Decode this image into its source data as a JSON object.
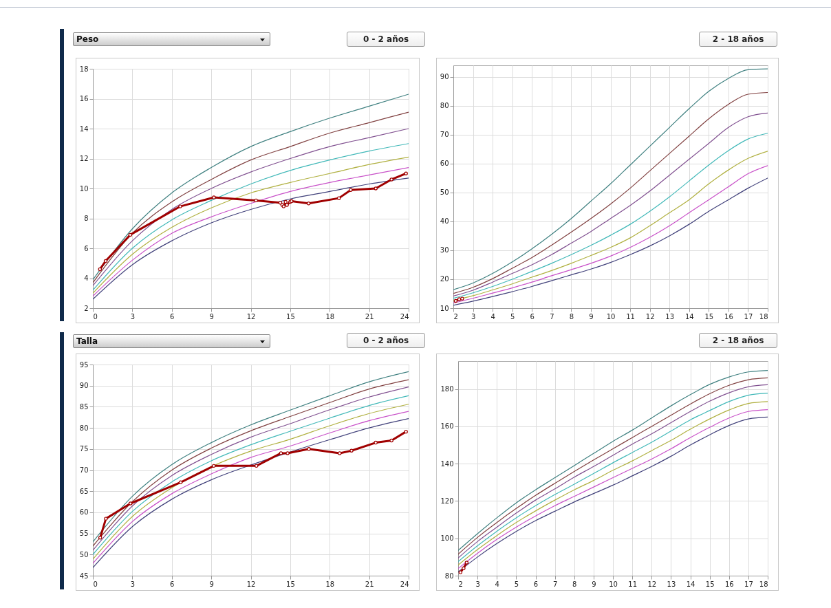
{
  "chart_data": [
    {
      "type": "line",
      "title": "0 - 2 años",
      "annotations": [
        "Peso"
      ],
      "x": [
        0,
        3,
        6,
        9,
        12,
        15,
        18,
        21,
        24
      ],
      "xlim": [
        0,
        24
      ],
      "xticks": [
        0,
        3,
        6,
        9,
        12,
        15,
        18,
        21,
        24
      ],
      "ylim": [
        2,
        18
      ],
      "yticks": [
        2,
        4,
        6,
        8,
        10,
        12,
        14,
        16,
        18
      ],
      "grid": true,
      "series": [
        {
          "color": "#3f8080",
          "marker": "none",
          "values": [
            3.9,
            7.3,
            9.7,
            11.4,
            12.8,
            13.8,
            14.7,
            15.5,
            16.3
          ]
        },
        {
          "color": "#804040",
          "marker": "none",
          "values": [
            3.7,
            7.0,
            9.1,
            10.6,
            11.9,
            12.8,
            13.7,
            14.4,
            15.1
          ]
        },
        {
          "color": "#805090",
          "marker": "none",
          "values": [
            3.5,
            6.5,
            8.6,
            10.0,
            11.1,
            12.0,
            12.8,
            13.4,
            14.0
          ]
        },
        {
          "color": "#40b8b8",
          "marker": "none",
          "values": [
            3.2,
            6.0,
            7.9,
            9.2,
            10.3,
            11.2,
            11.9,
            12.5,
            13.0
          ]
        },
        {
          "color": "#b0b040",
          "marker": "none",
          "values": [
            3.0,
            5.6,
            7.4,
            8.7,
            9.7,
            10.4,
            11.0,
            11.6,
            12.1
          ]
        },
        {
          "color": "#c850c8",
          "marker": "none",
          "values": [
            2.8,
            5.2,
            7.0,
            8.1,
            9.0,
            9.8,
            10.4,
            10.9,
            11.4
          ]
        },
        {
          "color": "#40407a",
          "marker": "none",
          "values": [
            2.6,
            4.9,
            6.5,
            7.7,
            8.6,
            9.3,
            9.8,
            10.3,
            10.7
          ]
        },
        {
          "color": "#a00000",
          "marker": "circle",
          "x": [
            0.54,
            0.97,
            2.84,
            6.64,
            9.2,
            12.4,
            14.25,
            14.4,
            14.5,
            14.65,
            14.75,
            15.0,
            15.1,
            16.4,
            18.7,
            19.6,
            21.5,
            22.7,
            23.8
          ],
          "values": [
            4.6,
            5.15,
            6.9,
            8.8,
            9.4,
            9.2,
            9.05,
            8.9,
            8.8,
            9.1,
            8.9,
            9.1,
            9.15,
            9.0,
            9.35,
            9.9,
            10.0,
            10.6,
            11.0
          ]
        }
      ]
    },
    {
      "type": "line",
      "title": "2 - 18 años",
      "x": [
        2,
        3,
        4,
        5,
        6,
        7,
        8,
        9,
        10,
        11,
        12,
        13,
        14,
        15,
        16,
        17,
        18
      ],
      "xlim": [
        2,
        18
      ],
      "xticks": [
        2,
        3,
        4,
        5,
        6,
        7,
        8,
        9,
        10,
        11,
        12,
        13,
        14,
        15,
        16,
        17,
        18
      ],
      "ylim": [
        10,
        94
      ],
      "yticks": [
        10,
        20,
        30,
        40,
        50,
        60,
        70,
        80,
        90
      ],
      "grid": true,
      "series": [
        {
          "color": "#3f8080",
          "marker": "none",
          "values": [
            16.4,
            18.7,
            22,
            26,
            30.5,
            35.5,
            41,
            47,
            53,
            59.5,
            66,
            72.5,
            79,
            85,
            89.5,
            92.5,
            92.8
          ]
        },
        {
          "color": "#804040",
          "marker": "none",
          "values": [
            15.1,
            17.2,
            20.2,
            23.8,
            27.5,
            31.8,
            36.3,
            41,
            46,
            51.5,
            57.5,
            63.5,
            69.5,
            75.5,
            80.5,
            84,
            84.6
          ]
        },
        {
          "color": "#805090",
          "marker": "none",
          "values": [
            14.2,
            16.2,
            19,
            22,
            25,
            28.5,
            32.5,
            36.5,
            41,
            45.5,
            50.5,
            56,
            61.5,
            67,
            72.5,
            76.2,
            77.5
          ]
        },
        {
          "color": "#40b8b8",
          "marker": "none",
          "values": [
            13.4,
            15.3,
            17.5,
            20,
            22.7,
            25.5,
            28.5,
            31.7,
            35.2,
            39,
            43.5,
            48.5,
            54,
            59.5,
            64.5,
            68.5,
            70.5
          ]
        },
        {
          "color": "#b0b040",
          "marker": "none",
          "values": [
            12.6,
            14.3,
            16.3,
            18.4,
            20.7,
            23,
            25.5,
            28.2,
            31,
            34.3,
            38.5,
            43,
            47.5,
            53,
            57.8,
            61.8,
            64.3
          ]
        },
        {
          "color": "#c850c8",
          "marker": "none",
          "values": [
            11.8,
            13.4,
            15.2,
            17,
            19,
            21.2,
            23.3,
            25.5,
            28,
            31,
            34.5,
            38.5,
            43,
            47.5,
            52,
            56.5,
            59.3
          ]
        },
        {
          "color": "#40407a",
          "marker": "none",
          "values": [
            11,
            12.4,
            14.0,
            15.7,
            17.5,
            19.5,
            21.5,
            23.5,
            25.8,
            28.5,
            31.5,
            35,
            39,
            43.5,
            47.5,
            51.5,
            55
          ]
        },
        {
          "color": "#a00000",
          "marker": "circle",
          "x": [
            2.12,
            2.3,
            2.45
          ],
          "values": [
            12.5,
            13.1,
            13.3
          ]
        }
      ]
    },
    {
      "type": "line",
      "title": "0 - 2 años",
      "annotations": [
        "Talla"
      ],
      "x": [
        0,
        3,
        6,
        9,
        12,
        15,
        18,
        21,
        24
      ],
      "xlim": [
        0,
        24
      ],
      "xticks": [
        0,
        3,
        6,
        9,
        12,
        15,
        18,
        21,
        24
      ],
      "ylim": [
        45,
        95
      ],
      "yticks": [
        45,
        50,
        55,
        60,
        65,
        70,
        75,
        80,
        85,
        90,
        95
      ],
      "grid": true,
      "series": [
        {
          "color": "#3f8080",
          "marker": "none",
          "values": [
            53,
            63.8,
            71.3,
            76.5,
            80.7,
            84.2,
            87.6,
            90.9,
            93.3
          ]
        },
        {
          "color": "#804040",
          "marker": "none",
          "values": [
            52,
            62.5,
            70,
            75.2,
            79.3,
            82.7,
            86,
            89.2,
            91.4
          ]
        },
        {
          "color": "#805090",
          "marker": "none",
          "values": [
            51,
            61.5,
            68.7,
            73.7,
            77.8,
            81,
            84.3,
            87.3,
            89.7
          ]
        },
        {
          "color": "#40b8b8",
          "marker": "none",
          "values": [
            50,
            60.2,
            67.2,
            72.2,
            76,
            79.2,
            82.3,
            85.3,
            87.6
          ]
        },
        {
          "color": "#b0b040",
          "marker": "none",
          "values": [
            48.9,
            59,
            65.8,
            70.8,
            74.5,
            77.3,
            80.5,
            83.4,
            85.6
          ]
        },
        {
          "color": "#c850c8",
          "marker": "none",
          "values": [
            47.9,
            57.8,
            64.4,
            69.1,
            73,
            75.7,
            78.8,
            81.7,
            83.9
          ]
        },
        {
          "color": "#40407a",
          "marker": "none",
          "values": [
            46.9,
            56.6,
            63.1,
            67.7,
            71.2,
            74.3,
            77.2,
            80,
            82.2
          ]
        },
        {
          "color": "#a00000",
          "marker": "circle",
          "x": [
            0.56,
            0.99,
            2.86,
            6.67,
            9.19,
            12.43,
            14.3,
            14.8,
            16.42,
            18.76,
            19.66,
            21.5,
            22.7,
            23.8
          ],
          "values": [
            54.0,
            58.5,
            62.1,
            67.1,
            71.0,
            71.0,
            74.0,
            74.0,
            75.0,
            74.0,
            74.6,
            76.5,
            77.0,
            79.1
          ]
        }
      ]
    },
    {
      "type": "line",
      "title": "2 - 18 años",
      "x": [
        2,
        3,
        4,
        5,
        6,
        7,
        8,
        9,
        10,
        11,
        12,
        13,
        14,
        15,
        16,
        17,
        18
      ],
      "xlim": [
        2,
        18
      ],
      "xticks": [
        2,
        3,
        4,
        5,
        6,
        7,
        8,
        9,
        10,
        11,
        12,
        13,
        14,
        15,
        16,
        17,
        18
      ],
      "ylim": [
        80,
        195
      ],
      "yticks": [
        80,
        100,
        120,
        140,
        160,
        180
      ],
      "grid": true,
      "series": [
        {
          "color": "#3f8080",
          "marker": "none",
          "values": [
            93.5,
            102.5,
            111,
            119,
            126,
            132.5,
            139,
            145.5,
            152,
            158,
            164.5,
            171,
            177,
            182.5,
            186.5,
            189.2,
            190
          ]
        },
        {
          "color": "#804040",
          "marker": "none",
          "values": [
            91.5,
            100.5,
            108.5,
            116,
            123,
            129.5,
            135.8,
            142,
            148,
            154,
            160,
            166,
            172,
            177.5,
            182,
            185,
            186
          ]
        },
        {
          "color": "#805090",
          "marker": "none",
          "values": [
            89.5,
            98.3,
            106,
            113.5,
            120.5,
            126.5,
            132.8,
            138.5,
            144.5,
            150.5,
            156,
            162,
            168,
            173.5,
            178,
            181.2,
            182.3
          ]
        },
        {
          "color": "#40b8b8",
          "marker": "none",
          "values": [
            87.5,
            96,
            103.8,
            111,
            117.5,
            123.5,
            129,
            134.7,
            140.5,
            146,
            151.5,
            157.5,
            163.5,
            168.5,
            173.3,
            176.7,
            177.8
          ]
        },
        {
          "color": "#b0b040",
          "marker": "none",
          "values": [
            85.7,
            94,
            101.5,
            108.5,
            114.7,
            120.5,
            126,
            131,
            136.5,
            141.5,
            147,
            152.5,
            158.5,
            164,
            168.8,
            172.3,
            173.3
          ]
        },
        {
          "color": "#c850c8",
          "marker": "none",
          "values": [
            83.8,
            92,
            99.4,
            106,
            112,
            117.5,
            122.5,
            127.5,
            132.5,
            137.5,
            142.5,
            148,
            154,
            159.5,
            164.5,
            168,
            169
          ]
        },
        {
          "color": "#40407a",
          "marker": "none",
          "values": [
            82,
            90,
            97.2,
            103.7,
            109.5,
            114.5,
            119.5,
            124,
            128.5,
            133.5,
            138.5,
            144,
            150,
            155.5,
            160.5,
            164,
            165
          ]
        },
        {
          "color": "#a00000",
          "marker": "circle",
          "x": [
            2.12,
            2.28,
            2.44
          ],
          "values": [
            81.8,
            84.0,
            87.0
          ]
        }
      ]
    }
  ]
}
